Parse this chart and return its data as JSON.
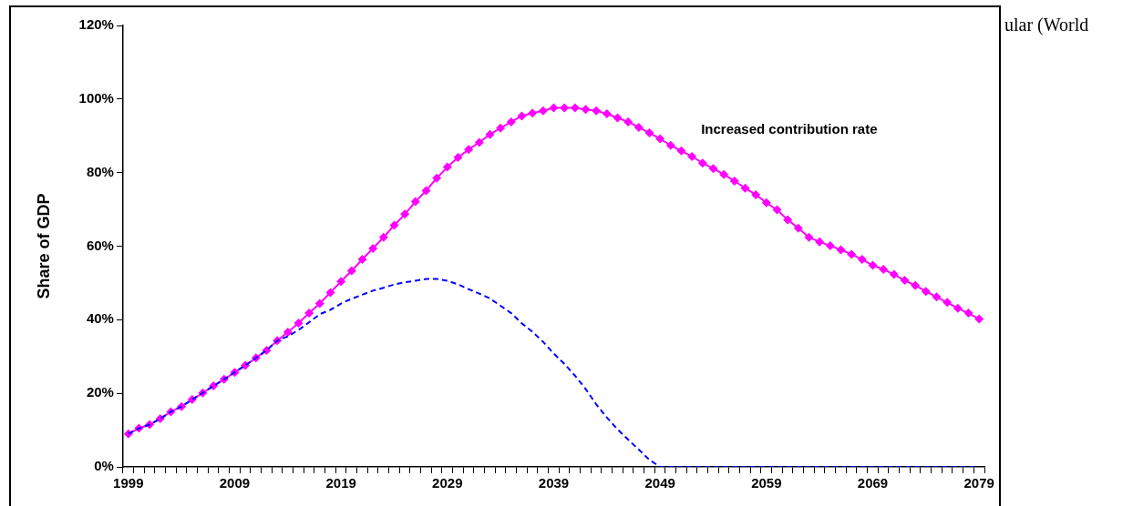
{
  "chart_data": {
    "type": "line",
    "ylabel": "Share of GDP",
    "categories": [
      "1999",
      null,
      null,
      null,
      null,
      null,
      null,
      null,
      null,
      null,
      "2009",
      null,
      null,
      null,
      null,
      null,
      null,
      null,
      null,
      null,
      "2019",
      null,
      null,
      null,
      null,
      null,
      null,
      null,
      null,
      null,
      "2029",
      null,
      null,
      null,
      null,
      null,
      null,
      null,
      null,
      null,
      "2039",
      null,
      null,
      null,
      null,
      null,
      null,
      null,
      null,
      null,
      "2049",
      null,
      null,
      null,
      null,
      null,
      null,
      null,
      null,
      null,
      "2059",
      null,
      null,
      null,
      null,
      null,
      null,
      null,
      null,
      null,
      "2069",
      null,
      null,
      null,
      null,
      null,
      null,
      null,
      null,
      null,
      "2079"
    ],
    "series": [
      {
        "name": "Increased contribution rate",
        "color": "#ff00ff",
        "marker": "diamond",
        "line_style": "solid",
        "values": [
          9.0,
          10.5,
          11.5,
          13.1,
          15.0,
          16.4,
          18.3,
          20.1,
          22.0,
          23.8,
          25.7,
          27.6,
          29.6,
          31.7,
          34.3,
          36.6,
          39.1,
          41.8,
          44.4,
          47.4,
          50.4,
          53.3,
          56.4,
          59.4,
          62.4,
          65.7,
          68.7,
          72.1,
          75.1,
          78.5,
          81.5,
          84.1,
          86.3,
          88.2,
          90.4,
          92.1,
          93.8,
          95.4,
          96.2,
          96.8,
          97.6,
          97.6,
          97.6,
          97.2,
          96.8,
          96.0,
          94.9,
          93.8,
          92.3,
          90.8,
          89.2,
          87.4,
          85.9,
          84.4,
          82.6,
          81.1,
          79.5,
          77.7,
          75.8,
          74.0,
          71.8,
          69.9,
          67.2,
          64.9,
          62.4,
          61.2,
          60.1,
          59.0,
          57.8,
          56.4,
          54.8,
          53.7,
          52.3,
          50.7,
          49.3,
          47.7,
          46.2,
          44.7,
          43.1,
          41.8,
          40.2
        ]
      },
      {
        "color": "#0000ff",
        "marker": "none",
        "line_style": "dashed",
        "values": [
          9.0,
          10.5,
          11.5,
          13.1,
          15.0,
          16.4,
          18.3,
          20.1,
          22.0,
          23.8,
          25.7,
          27.6,
          29.6,
          31.7,
          34.3,
          35.5,
          37.2,
          39.3,
          41.5,
          42.7,
          44.4,
          45.7,
          46.8,
          47.9,
          48.7,
          49.6,
          50.2,
          50.6,
          51.1,
          51.1,
          50.6,
          49.6,
          48.3,
          47.1,
          45.8,
          43.8,
          41.8,
          39.0,
          36.7,
          34.0,
          30.8,
          28.0,
          24.8,
          21.2,
          17.0,
          13.4,
          10.2,
          7.4,
          4.7,
          1.9,
          0,
          0,
          0,
          0,
          0,
          0,
          0,
          0,
          0,
          0,
          0,
          0,
          0,
          0,
          0,
          0,
          0,
          0,
          0,
          0,
          0,
          0,
          0,
          0,
          0,
          0,
          0,
          0,
          0,
          0,
          0
        ]
      }
    ],
    "ylim": [
      0,
      120
    ],
    "yticks": [
      {
        "value": 0,
        "label": "0%"
      },
      {
        "value": 20,
        "label": "20%"
      },
      {
        "value": 40,
        "label": "40%"
      },
      {
        "value": 60,
        "label": "60%"
      },
      {
        "value": 80,
        "label": "80%"
      },
      {
        "value": 100,
        "label": "100%"
      },
      {
        "value": 120,
        "label": "120%"
      }
    ],
    "grid": false,
    "legend": false,
    "annotations": [
      "ular (World"
    ]
  }
}
